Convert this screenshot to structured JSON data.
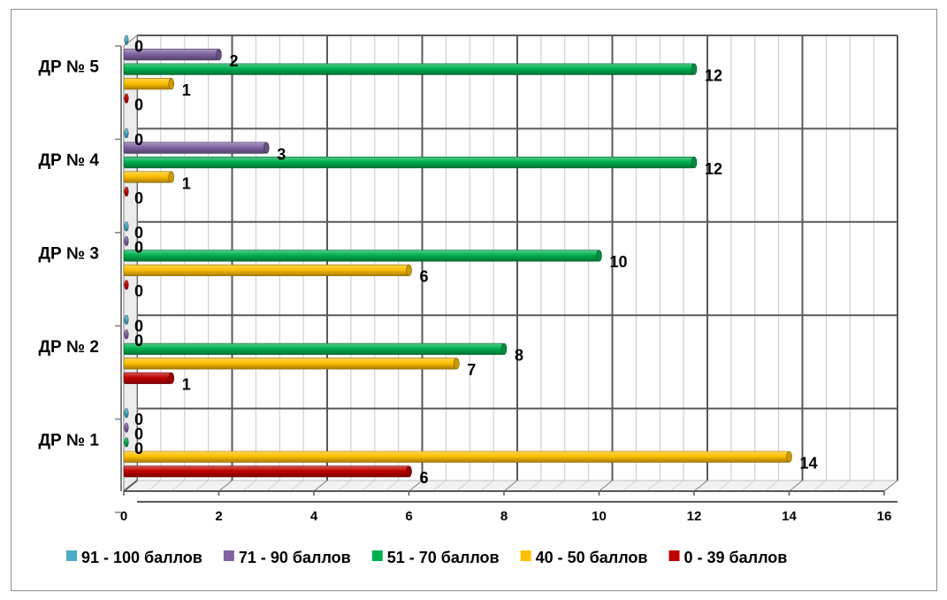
{
  "chart_data": {
    "type": "bar",
    "orientation": "horizontal",
    "categories": [
      "ДР № 1",
      "ДР № 2",
      "ДР № 3",
      "ДР № 4",
      "ДР № 5"
    ],
    "series": [
      {
        "name": "0 - 39 баллов",
        "color": "#c00000",
        "values": [
          6,
          1,
          0,
          0,
          0
        ]
      },
      {
        "name": "40 - 50 баллов",
        "color": "#ffc000",
        "values": [
          14,
          7,
          6,
          1,
          1
        ]
      },
      {
        "name": "51 - 70 баллов",
        "color": "#00b050",
        "values": [
          0,
          8,
          10,
          12,
          12
        ]
      },
      {
        "name": "71 - 90 баллов",
        "color": "#8064a2",
        "values": [
          0,
          0,
          0,
          3,
          2
        ]
      },
      {
        "name": "91 - 100 баллов",
        "color": "#4bacc6",
        "values": [
          0,
          0,
          0,
          0,
          0
        ]
      }
    ],
    "xlim": [
      0,
      16
    ],
    "x_ticks": [
      "0",
      "2",
      "4",
      "6",
      "8",
      "10",
      "12",
      "14",
      "16"
    ],
    "grid": true,
    "legend": "bottom",
    "legend_order": [
      "91 - 100 баллов",
      "71 - 90 баллов",
      "51 - 70 баллов",
      "40 - 50 баллов",
      "0 - 39 баллов"
    ],
    "title": "",
    "xlabel": "",
    "ylabel": ""
  }
}
